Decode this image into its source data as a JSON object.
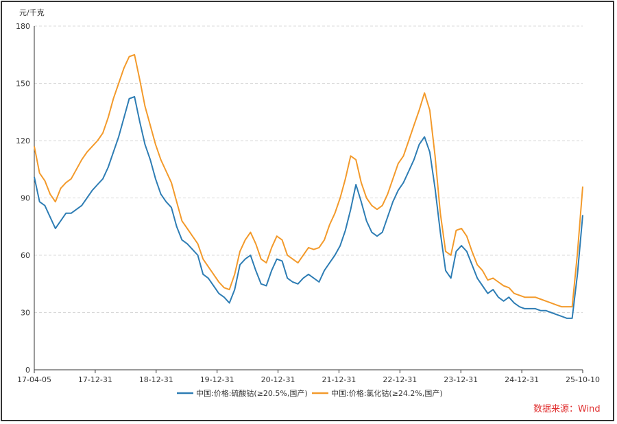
{
  "chart_data": {
    "type": "line",
    "ylabel": "元/千克",
    "ylim": [
      0,
      180
    ],
    "yticks": [
      0,
      30,
      60,
      90,
      120,
      150,
      180
    ],
    "xticks": [
      "17-04-05",
      "17-12-31",
      "18-12-31",
      "19-12-31",
      "20-12-31",
      "21-12-31",
      "22-12-31",
      "23-12-31",
      "24-12-31",
      "25-10-10"
    ],
    "grid": true,
    "legend_position": "bottom",
    "source": "数据来源：Wind",
    "colors": {
      "series1": "#2e7db4",
      "series2": "#f39a2b"
    },
    "series": [
      {
        "name": "中国:价格:硫酸钴(≥20.5%,国产)",
        "x": [
          0,
          1,
          2,
          3,
          4,
          5,
          6,
          7,
          8,
          9,
          10,
          11,
          12,
          13,
          14,
          15,
          16,
          17,
          18,
          19,
          20,
          21,
          22,
          23,
          24,
          25,
          26,
          27,
          28,
          29,
          30,
          31,
          32,
          33,
          34,
          35,
          36,
          37,
          38,
          39,
          40,
          41,
          42,
          43,
          44,
          45,
          46,
          47,
          48,
          49,
          50,
          51,
          52,
          53,
          54,
          55,
          56,
          57,
          58,
          59,
          60,
          61,
          62,
          63,
          64,
          65,
          66,
          67,
          68,
          69,
          70,
          71,
          72,
          73,
          74,
          75,
          76,
          77,
          78,
          79,
          80,
          81,
          82,
          83,
          84,
          85,
          86,
          87,
          88,
          89,
          90,
          91,
          92,
          93,
          94,
          95,
          96,
          97,
          98,
          99,
          100,
          101,
          102,
          103,
          104
        ],
        "values": [
          101,
          88,
          86,
          80,
          74,
          78,
          82,
          82,
          84,
          86,
          90,
          94,
          97,
          100,
          106,
          114,
          122,
          132,
          142,
          143,
          130,
          118,
          110,
          100,
          92,
          88,
          85,
          75,
          68,
          66,
          63,
          60,
          50,
          48,
          44,
          40,
          38,
          35,
          42,
          55,
          58,
          60,
          52,
          45,
          44,
          52,
          58,
          57,
          48,
          46,
          45,
          48,
          50,
          48,
          46,
          52,
          56,
          60,
          65,
          73,
          84,
          97,
          88,
          78,
          72,
          70,
          72,
          80,
          88,
          94,
          98,
          104,
          110,
          118,
          122,
          114,
          95,
          72,
          52,
          48,
          62,
          65,
          62,
          55,
          48,
          44,
          40,
          42,
          38,
          36,
          38,
          35,
          33,
          32,
          32,
          32,
          31,
          31,
          30,
          29,
          28,
          27,
          27,
          50,
          81
        ],
        "labels_note": "weekly-ish samples, x index in 1/104 steps across axis"
      },
      {
        "name": "中国:价格:氯化钴(≥24.2%,国产)",
        "x": [
          0,
          1,
          2,
          3,
          4,
          5,
          6,
          7,
          8,
          9,
          10,
          11,
          12,
          13,
          14,
          15,
          16,
          17,
          18,
          19,
          20,
          21,
          22,
          23,
          24,
          25,
          26,
          27,
          28,
          29,
          30,
          31,
          32,
          33,
          34,
          35,
          36,
          37,
          38,
          39,
          40,
          41,
          42,
          43,
          44,
          45,
          46,
          47,
          48,
          49,
          50,
          51,
          52,
          53,
          54,
          55,
          56,
          57,
          58,
          59,
          60,
          61,
          62,
          63,
          64,
          65,
          66,
          67,
          68,
          69,
          70,
          71,
          72,
          73,
          74,
          75,
          76,
          77,
          78,
          79,
          80,
          81,
          82,
          83,
          84,
          85,
          86,
          87,
          88,
          89,
          90,
          91,
          92,
          93,
          94,
          95,
          96,
          97,
          98,
          99,
          100,
          101,
          102,
          103,
          104
        ],
        "values": [
          117,
          103,
          99,
          92,
          88,
          95,
          98,
          100,
          105,
          110,
          114,
          117,
          120,
          124,
          132,
          142,
          150,
          158,
          164,
          165,
          152,
          138,
          128,
          118,
          110,
          104,
          98,
          88,
          78,
          74,
          70,
          66,
          58,
          54,
          50,
          46,
          43,
          42,
          50,
          62,
          68,
          72,
          66,
          58,
          56,
          64,
          70,
          68,
          60,
          58,
          56,
          60,
          64,
          63,
          64,
          68,
          76,
          82,
          90,
          100,
          112,
          110,
          98,
          90,
          86,
          84,
          86,
          92,
          100,
          108,
          112,
          120,
          128,
          136,
          145,
          136,
          112,
          82,
          62,
          60,
          73,
          74,
          70,
          62,
          55,
          52,
          47,
          48,
          46,
          44,
          43,
          40,
          39,
          38,
          38,
          38,
          37,
          36,
          35,
          34,
          33,
          33,
          33,
          61,
          96
        ],
        "labels_note": "weekly-ish samples, x index in 1/104 steps across axis"
      }
    ]
  },
  "legend": {
    "series1_label": "中国:价格:硫酸钴(≥20.5%,国产)",
    "series2_label": "中国:价格:氯化钴(≥24.2%,国产)"
  }
}
